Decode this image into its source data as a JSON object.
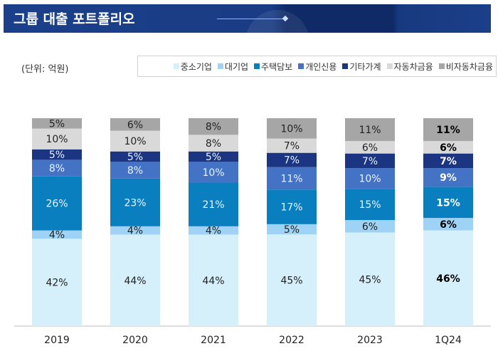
{
  "header": {
    "title": "그룹 대출 포트폴리오"
  },
  "unit_label": "(단위: 억원)",
  "chart_data": {
    "type": "bar",
    "stacked": true,
    "normalized": true,
    "categories": [
      "2019",
      "2020",
      "2021",
      "2022",
      "2023",
      "1Q24"
    ],
    "bold_category": "1Q24",
    "legend_placement": "top-right",
    "series": [
      {
        "name": "중소기업",
        "color": "#d6f0fb",
        "label_color": "#222222",
        "values": [
          42,
          44,
          44,
          45,
          45,
          46
        ]
      },
      {
        "name": "대기업",
        "color": "#9fd3f5",
        "label_color": "#222222",
        "values": [
          4,
          4,
          4,
          5,
          6,
          6
        ]
      },
      {
        "name": "주택담보",
        "color": "#0a7fbf",
        "label_color": "#e8f4ff",
        "values": [
          26,
          23,
          21,
          17,
          15,
          15
        ]
      },
      {
        "name": "개인신용",
        "color": "#4472c4",
        "label_color": "#e8f4ff",
        "values": [
          8,
          8,
          10,
          11,
          10,
          9
        ]
      },
      {
        "name": "기타가계",
        "color": "#1c3582",
        "label_color": "#e8f4ff",
        "values": [
          5,
          5,
          5,
          7,
          7,
          7
        ]
      },
      {
        "name": "자동차금융",
        "color": "#d9d9d9",
        "label_color": "#222222",
        "values": [
          10,
          10,
          8,
          7,
          6,
          6
        ]
      },
      {
        "name": "비자동차금융",
        "color": "#a6a6a6",
        "label_color": "#222222",
        "values": [
          5,
          6,
          8,
          10,
          11,
          11
        ]
      }
    ]
  }
}
